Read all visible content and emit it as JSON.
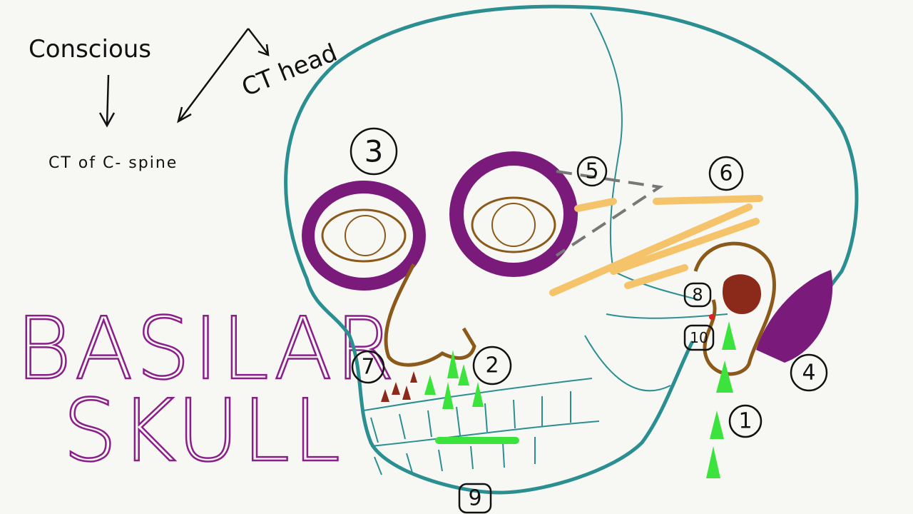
{
  "notes": {
    "conscious": "Conscious",
    "ct_head": "CT head",
    "ct_spine": "CT of C- spine"
  },
  "title_lines": [
    "BASILAR",
    "SKULL"
  ],
  "markers": [
    "1",
    "2",
    "3",
    "4",
    "5",
    "6",
    "7",
    "8",
    "9",
    "10"
  ]
}
